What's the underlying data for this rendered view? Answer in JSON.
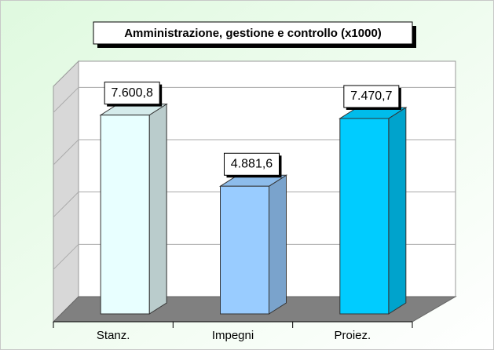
{
  "chart_data": {
    "type": "bar3d",
    "title": "Amministrazione, gestione e controllo (x1000)",
    "categories": [
      "Stanz.",
      "Impegni",
      "Proiez."
    ],
    "values": [
      7600.8,
      4881.6,
      7470.7
    ],
    "value_labels": [
      "7.600,8",
      "4.881,6",
      "7.470,7"
    ],
    "colors": [
      "#e8ffff",
      "#99ccff",
      "#00ccff"
    ],
    "ylim": [
      0,
      9000
    ],
    "yticks": [
      0,
      2000,
      4000,
      6000,
      8000
    ],
    "grid": true
  }
}
